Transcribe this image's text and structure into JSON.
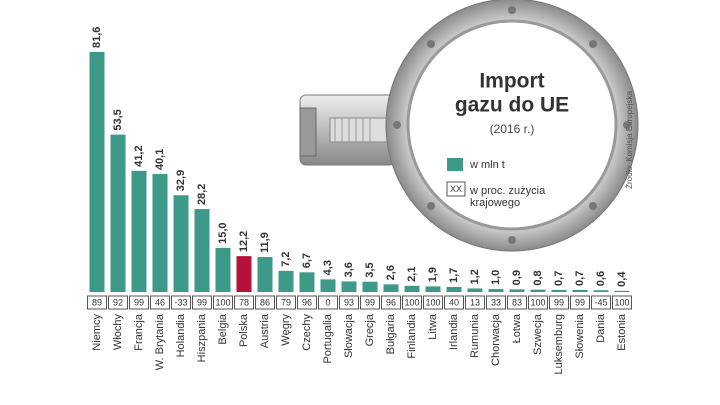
{
  "chart_data": {
    "type": "bar",
    "title": [
      "Import",
      "gazu do UE"
    ],
    "subtitle": "(2016 r.)",
    "source": "Źródło: Komisja Europejska",
    "categories": [
      "Niemcy",
      "Włochy",
      "Francja",
      "W. Brytania",
      "Holandia",
      "Hiszpania",
      "Belgia",
      "Polska",
      "Austria",
      "Węgry",
      "Czechy",
      "Portugalia",
      "Słowacja",
      "Grecja",
      "Bułgaria",
      "Finlandia",
      "Litwa",
      "Irlandia",
      "Rumunia",
      "Chorwacja",
      "Łotwa",
      "Szwecja",
      "Luksemburg",
      "Słowenia",
      "Dania",
      "Estonia"
    ],
    "series": [
      {
        "name": "w mln t",
        "color": "#3d9a89",
        "values": [
          81.6,
          53.5,
          41.2,
          40.1,
          32.9,
          28.2,
          15.0,
          12.2,
          11.9,
          7.2,
          6.7,
          4.3,
          3.6,
          3.5,
          2.6,
          2.1,
          1.9,
          1.7,
          1.2,
          1.0,
          0.9,
          0.8,
          0.7,
          0.7,
          0.6,
          0.4
        ],
        "value_labels": [
          "81,6",
          "53,5",
          "41,2",
          "40,1",
          "32,9",
          "28,2",
          "15,0",
          "12,2",
          "11,9",
          "7,2",
          "6,7",
          "4,3",
          "3,6",
          "3,5",
          "2,6",
          "2,1",
          "1,9",
          "1,7",
          "1,2",
          "1,0",
          "0,9",
          "0,8",
          "0,7",
          "0,7",
          "0,6",
          "0,4"
        ]
      }
    ],
    "highlight_category": "Polska",
    "highlight_color": "#b5123b",
    "share": {
      "name": "w proc. zużycia krajowego",
      "sample": "XX",
      "values": [
        89,
        92,
        99,
        46,
        -33,
        99,
        100,
        78,
        86,
        79,
        96,
        0,
        93,
        99,
        96,
        100,
        100,
        40,
        13,
        33,
        83,
        100,
        99,
        99,
        -45,
        100
      ]
    }
  }
}
